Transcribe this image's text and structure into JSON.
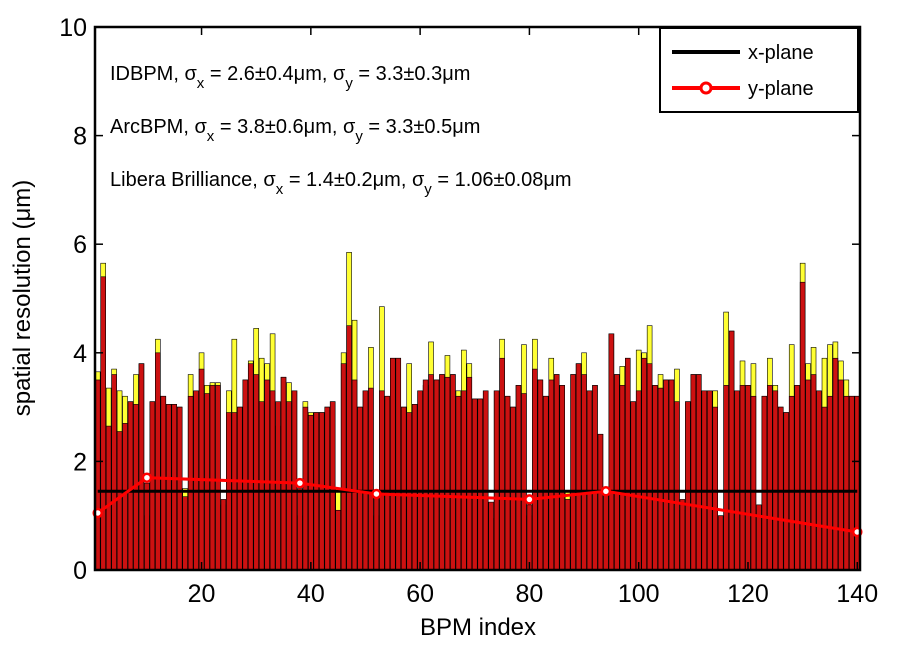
{
  "chart_data": {
    "type": "bar",
    "xlabel": "BPM index",
    "ylabel": "spatial resolution (μm)",
    "xlim": [
      0.5,
      140.5
    ],
    "xticks": [
      20,
      40,
      60,
      80,
      100,
      120,
      140
    ],
    "ylim": [
      0,
      10
    ],
    "yticks": [
      0,
      2,
      4,
      6,
      8,
      10
    ],
    "legend": "upper right",
    "annotations": [
      [
        "IDBPM, σ",
        "x",
        " = 2.6±0.4μm, σ",
        "y",
        " = 3.3±0.3μm"
      ],
      [
        "ArcBPM, σ",
        "x",
        " = 3.8±0.6μm, σ",
        "y",
        " = 3.3±0.5μm"
      ],
      [
        "Libera Brilliance, σ",
        "x",
        " = 1.4±0.2μm, σ",
        "y",
        " = 1.06±0.08μm"
      ]
    ],
    "bars": [
      {
        "color": "#ffff33",
        "values": [
          3.65,
          5.65,
          3.35,
          3.7,
          3.3,
          3.2,
          3.1,
          3.6,
          3.8,
          1.0,
          3.1,
          4.25,
          3.2,
          3.05,
          3.05,
          3.0,
          1.5,
          3.6,
          3.3,
          4.0,
          3.4,
          3.45,
          3.45,
          1.2,
          3.3,
          4.25,
          3.0,
          3.5,
          3.85,
          4.45,
          3.9,
          3.8,
          4.35,
          2.65,
          3.55,
          3.45,
          3.3,
          1.0,
          3.1,
          2.9,
          2.9,
          2.9,
          3.0,
          3.1,
          1.5,
          4.0,
          5.85,
          4.6,
          3.0,
          3.3,
          4.1,
          1.0,
          4.85,
          3.2,
          3.9,
          3.9,
          3.0,
          3.8,
          3.05,
          3.3,
          3.4,
          4.2,
          3.5,
          3.6,
          3.95,
          3.6,
          3.3,
          4.05,
          3.8,
          3.15,
          3.15,
          3.3,
          0.95,
          3.3,
          4.25,
          3.2,
          3.0,
          3.4,
          4.15,
          1.0,
          4.25,
          3.5,
          3.2,
          3.9,
          3.6,
          3.4,
          1.45,
          3.6,
          3.8,
          4.0,
          3.3,
          3.4,
          2.5,
          1.45,
          4.35,
          3.6,
          3.75,
          3.9,
          3.1,
          4.05,
          4.0,
          4.5,
          3.4,
          3.6,
          3.5,
          3.5,
          3.7,
          1.1,
          3.1,
          3.6,
          3.6,
          3.3,
          3.3,
          3.3,
          1.0,
          4.75,
          4.4,
          3.3,
          3.85,
          3.4,
          3.8,
          1.1,
          3.2,
          3.9,
          3.4,
          3.0,
          2.9,
          4.15,
          3.4,
          5.65,
          3.8,
          4.1,
          3.3,
          3.9,
          4.15,
          4.2,
          3.85,
          3.5,
          3.2,
          3.2
        ]
      },
      {
        "color": "#cc1111",
        "values": [
          3.5,
          5.4,
          2.65,
          3.6,
          2.55,
          2.7,
          3.1,
          3.05,
          3.8,
          1.6,
          3.1,
          4.0,
          3.2,
          3.05,
          3.05,
          3.0,
          1.35,
          3.2,
          3.3,
          3.7,
          3.25,
          3.4,
          3.4,
          1.3,
          2.9,
          2.9,
          3.0,
          3.5,
          3.8,
          3.6,
          3.1,
          3.5,
          3.3,
          3.1,
          3.55,
          3.1,
          3.3,
          1.5,
          3.0,
          2.85,
          2.9,
          2.9,
          3.0,
          3.1,
          1.1,
          3.8,
          4.5,
          3.5,
          3.0,
          3.3,
          3.35,
          1.4,
          3.3,
          3.2,
          3.9,
          3.9,
          3.0,
          2.9,
          3.05,
          3.3,
          3.5,
          3.6,
          3.5,
          3.6,
          3.55,
          3.6,
          3.2,
          3.3,
          3.55,
          3.15,
          3.15,
          3.3,
          1.25,
          3.3,
          3.9,
          3.2,
          3.0,
          3.4,
          3.25,
          1.2,
          3.7,
          3.5,
          3.2,
          3.5,
          3.6,
          3.4,
          1.3,
          3.6,
          3.8,
          3.6,
          3.3,
          3.4,
          2.5,
          1.4,
          4.35,
          3.6,
          3.4,
          3.9,
          3.1,
          3.3,
          3.9,
          3.8,
          3.4,
          3.35,
          3.5,
          3.5,
          3.1,
          1.3,
          3.1,
          3.6,
          3.6,
          3.3,
          3.3,
          3.0,
          1.0,
          3.4,
          4.4,
          3.3,
          3.4,
          3.4,
          3.2,
          1.2,
          3.2,
          3.4,
          3.3,
          3.0,
          2.9,
          3.2,
          3.4,
          5.3,
          3.5,
          3.6,
          3.3,
          3.0,
          3.2,
          3.9,
          3.5,
          3.2,
          3.2,
          3.2
        ]
      }
    ],
    "series": [
      {
        "name": "x-plane",
        "color": "#000000",
        "marker": "none",
        "x": [
          1,
          140
        ],
        "values": [
          1.45,
          1.45
        ]
      },
      {
        "name": "y-plane",
        "color": "#ff0000",
        "marker": "circle",
        "x": [
          1,
          10,
          38,
          52,
          80,
          94,
          140
        ],
        "values": [
          1.05,
          1.7,
          1.6,
          1.4,
          1.3,
          1.45,
          0.7
        ]
      }
    ]
  }
}
